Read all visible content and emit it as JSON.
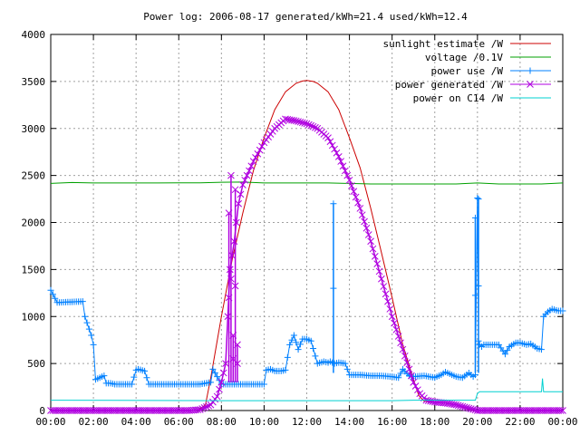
{
  "chart_data": {
    "type": "line",
    "title": "Power log: 2006-08-17 generated/kWh=21.4 used/kWh=12.4",
    "xlabel": "",
    "ylabel": "",
    "grid": true,
    "legend_position": "top-right",
    "x_ticks": [
      "00:00",
      "02:00",
      "04:00",
      "06:00",
      "08:00",
      "10:00",
      "12:00",
      "14:00",
      "16:00",
      "18:00",
      "20:00",
      "22:00",
      "00:00"
    ],
    "y_ticks": [
      0,
      500,
      1000,
      1500,
      2000,
      2500,
      3000,
      3500,
      4000
    ],
    "xlim_hours": [
      0,
      24
    ],
    "ylim": [
      0,
      4000
    ],
    "series": [
      {
        "name": "sunlight estimate /W",
        "color": "#cc0000",
        "marker": "none",
        "x": [
          6.8,
          7.0,
          7.25,
          7.5,
          8.0,
          8.5,
          9.0,
          9.5,
          10.0,
          10.5,
          11.0,
          11.5,
          11.8,
          12.0,
          12.3,
          12.5,
          13.0,
          13.5,
          14.0,
          14.5,
          15.0,
          15.5,
          16.0,
          16.5,
          17.0,
          17.25,
          17.5,
          18.0,
          18.25,
          18.5,
          19.0,
          19.5,
          19.8
        ],
        "y": [
          0,
          20,
          60,
          350,
          1000,
          1600,
          2100,
          2550,
          2900,
          3200,
          3390,
          3480,
          3505,
          3510,
          3500,
          3480,
          3390,
          3200,
          2900,
          2580,
          2150,
          1680,
          1200,
          700,
          330,
          160,
          100,
          90,
          85,
          80,
          60,
          20,
          0
        ]
      },
      {
        "name": "voltage /0.1V",
        "color": "#00a000",
        "marker": "none",
        "x": [
          0,
          1,
          2,
          3,
          4,
          5,
          6,
          7,
          8,
          9,
          10,
          11,
          12,
          13,
          14,
          15,
          16,
          17,
          18,
          19,
          20,
          21,
          22,
          23,
          24
        ],
        "y": [
          2415,
          2425,
          2420,
          2420,
          2420,
          2420,
          2422,
          2422,
          2428,
          2430,
          2420,
          2420,
          2420,
          2420,
          2415,
          2410,
          2410,
          2410,
          2410,
          2410,
          2420,
          2410,
          2410,
          2410,
          2420
        ]
      },
      {
        "name": "power use /W",
        "color": "#0080ff",
        "marker": "plus",
        "x": [
          0,
          0.3,
          0.4,
          1.5,
          1.6,
          1.9,
          2.0,
          2.1,
          2.2,
          2.5,
          2.6,
          2.8,
          3.0,
          3.5,
          3.8,
          4.0,
          4.1,
          4.4,
          4.6,
          5.0,
          6.0,
          6.8,
          7.0,
          7.5,
          7.6,
          8.0,
          8.5,
          9.0,
          9.5,
          10.0,
          10.1,
          10.3,
          10.5,
          10.8,
          11.0,
          11.2,
          11.4,
          11.6,
          11.8,
          12.0,
          12.2,
          12.5,
          12.8,
          13.0,
          13.1,
          13.3,
          13.5,
          13.8,
          14.0,
          14.5,
          15.0,
          15.5,
          16.0,
          16.3,
          16.5,
          16.8,
          17.0,
          17.5,
          18.0,
          18.3,
          18.5,
          18.8,
          19.0,
          19.3,
          19.6,
          19.8,
          19.9,
          20.0,
          20.05,
          20.1,
          20.2,
          20.3,
          20.5,
          21.0,
          21.3,
          21.5,
          21.8,
          22.0,
          22.3,
          22.5,
          22.8,
          23.0,
          23.1,
          23.3,
          23.5,
          23.8,
          24.0
        ],
        "y": [
          1280,
          1150,
          1150,
          1160,
          1000,
          800,
          700,
          330,
          340,
          370,
          290,
          290,
          280,
          280,
          280,
          430,
          440,
          420,
          280,
          280,
          280,
          280,
          280,
          300,
          440,
          280,
          280,
          280,
          280,
          280,
          430,
          440,
          420,
          420,
          430,
          700,
          800,
          650,
          760,
          760,
          740,
          500,
          520,
          510,
          520,
          500,
          510,
          500,
          380,
          380,
          370,
          370,
          360,
          350,
          440,
          370,
          360,
          370,
          350,
          380,
          410,
          380,
          360,
          350,
          400,
          360,
          380,
          2260,
          740,
          700,
          680,
          700,
          700,
          700,
          600,
          680,
          720,
          720,
          700,
          710,
          660,
          650,
          1000,
          1050,
          1080,
          1060,
          1060
        ]
      },
      {
        "name": "power generated /W",
        "color": "#b000e0",
        "marker": "cross",
        "x": [
          0,
          6.5,
          7.0,
          7.5,
          7.8,
          8.0,
          8.2,
          8.4,
          8.6,
          8.8,
          9.0,
          9.5,
          10.0,
          10.5,
          11.0,
          11.5,
          12.0,
          12.5,
          13.0,
          13.5,
          14.0,
          14.5,
          15.0,
          15.5,
          16.0,
          16.5,
          17.0,
          17.3,
          17.6,
          18.0,
          18.5,
          19.0,
          19.5,
          20.0,
          24.0
        ],
        "y": [
          0,
          0,
          10,
          60,
          150,
          300,
          500,
          1500,
          1800,
          2200,
          2400,
          2650,
          2850,
          3000,
          3100,
          3080,
          3050,
          3000,
          2900,
          2700,
          2450,
          2150,
          1800,
          1400,
          1000,
          650,
          300,
          180,
          110,
          90,
          80,
          60,
          30,
          0,
          0
        ]
      },
      {
        "name": "power on C14 /W",
        "color": "#00d0d0",
        "marker": "none",
        "x": [
          0,
          0.1,
          8.0,
          16.0,
          17.0,
          18.0,
          19.5,
          19.9,
          20.0,
          20.1,
          22.0,
          23.0,
          23.05,
          23.1,
          24.0
        ],
        "y": [
          110,
          110,
          105,
          105,
          110,
          110,
          110,
          110,
          180,
          200,
          200,
          200,
          340,
          200,
          200
        ]
      }
    ],
    "spikes": [
      {
        "series": "power generated /W",
        "x": [
          8.35,
          8.45,
          8.55,
          8.65,
          8.75
        ],
        "y": [
          2100,
          2500,
          800,
          2350,
          700
        ]
      },
      {
        "series": "power use /W",
        "x": [
          13.25,
          19.9,
          20.05
        ],
        "y": [
          2200,
          2050,
          2250
        ]
      }
    ]
  }
}
